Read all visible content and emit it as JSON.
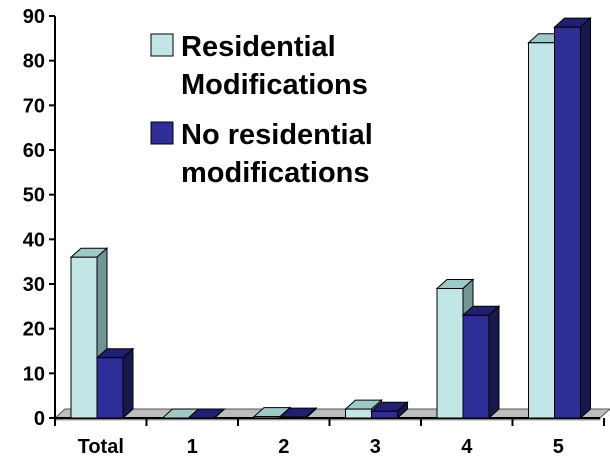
{
  "chart_data": {
    "type": "bar",
    "categories": [
      "Total",
      "1",
      "2",
      "3",
      "4",
      "5"
    ],
    "series": [
      {
        "name": "Residential Modifications",
        "values": [
          36,
          0,
          0.3,
          2,
          29,
          84
        ]
      },
      {
        "name": "No residential modifications",
        "values": [
          13.5,
          0,
          0.2,
          1.5,
          23,
          87.5
        ]
      }
    ],
    "ylim": [
      0,
      90
    ],
    "yticks": [
      0,
      10,
      20,
      30,
      40,
      50,
      60,
      70,
      80,
      90
    ],
    "legend_position": "top-center",
    "style": "3d-bar",
    "grid": false,
    "colors": {
      "series1_front": "#c2e6e6",
      "series1_side": "#6f9595",
      "series1_top": "#9fc9c9",
      "series2_front": "#2e2e96",
      "series2_side": "#18184f",
      "series2_top": "#202070",
      "floor_front": "#9a9a9a",
      "floor_top": "#bdbdbd",
      "axis": "#000000"
    }
  },
  "legend": {
    "items": [
      {
        "lines": [
          "Residential",
          "Modifications"
        ]
      },
      {
        "lines": [
          "No residential",
          "modifications"
        ]
      }
    ]
  }
}
